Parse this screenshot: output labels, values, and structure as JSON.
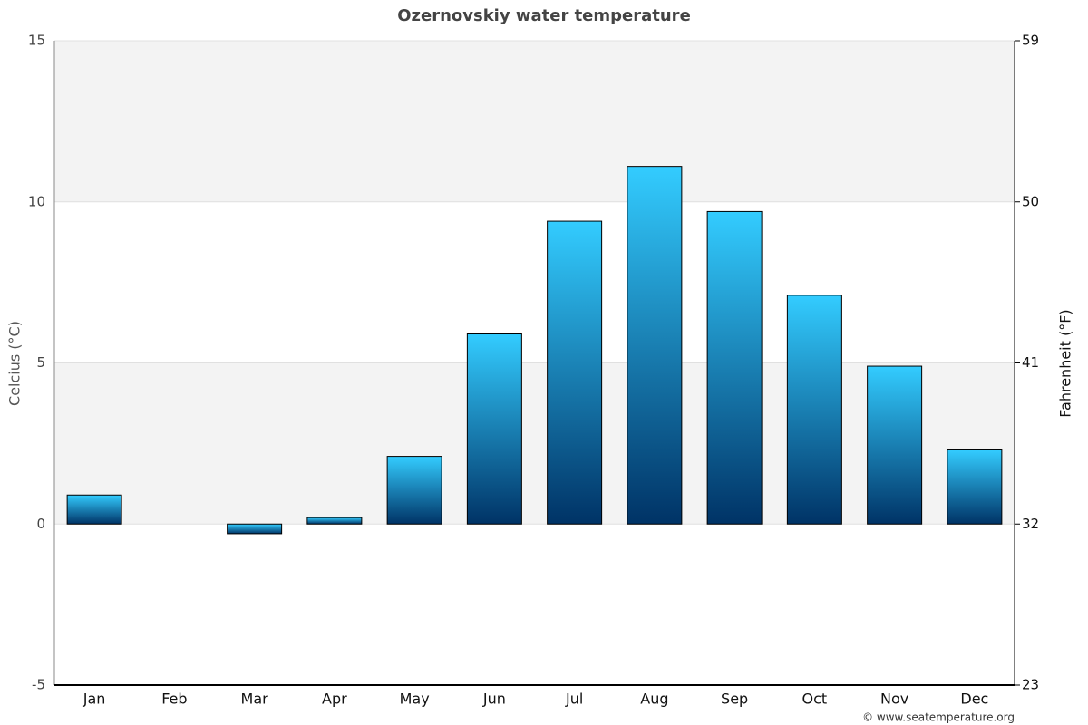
{
  "chart_data": {
    "type": "bar",
    "title": "Ozernovskiy water temperature",
    "y_label": "Celcius (°C)",
    "y2_label": "Fahrenheit (°F)",
    "categories": [
      "Jan",
      "Feb",
      "Mar",
      "Apr",
      "May",
      "Jun",
      "Jul",
      "Aug",
      "Sep",
      "Oct",
      "Nov",
      "Dec"
    ],
    "values": [
      0.9,
      0.0,
      -0.3,
      0.2,
      2.1,
      5.9,
      9.4,
      11.1,
      9.7,
      7.1,
      4.9,
      2.3
    ],
    "gradient": [
      "#33ccff",
      "#003366"
    ],
    "ylim": [
      -5,
      15
    ],
    "yticks": [
      -5,
      0,
      5,
      10,
      15
    ],
    "y2lim": [
      23,
      59
    ],
    "y2ticks": [
      23,
      32,
      41,
      50,
      59
    ],
    "grid": true,
    "credit": "© www.seatemperature.org"
  }
}
